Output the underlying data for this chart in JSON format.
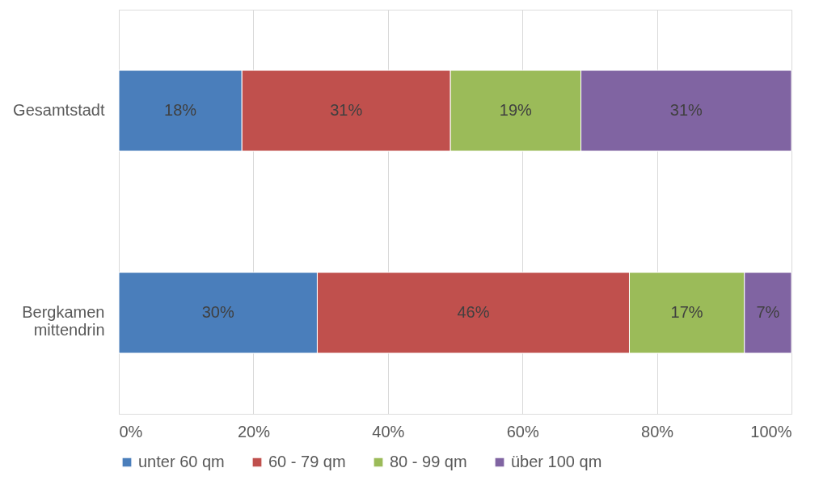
{
  "chart_data": {
    "type": "bar",
    "orientation": "horizontal",
    "stacked": true,
    "categories": [
      "Gesamtstadt",
      "Bergkamen mittendrin"
    ],
    "series": [
      {
        "name": "unter 60 qm",
        "color": "#4a7ebb",
        "values": [
          18.3,
          29.5
        ],
        "value_labels": [
          "18%",
          "30%"
        ]
      },
      {
        "name": "60 - 79 qm",
        "color": "#c0504d",
        "values": [
          31.0,
          46.4
        ],
        "value_labels": [
          "31%",
          "46%"
        ]
      },
      {
        "name": "80 - 99 qm",
        "color": "#9bbb59",
        "values": [
          19.4,
          17.1
        ],
        "value_labels": [
          "19%",
          "17%"
        ]
      },
      {
        "name": "über 100 qm",
        "color": "#8064a2",
        "values": [
          31.3,
          7.0
        ],
        "value_labels": [
          "31%",
          "7%"
        ]
      }
    ],
    "xlim": [
      0,
      100
    ],
    "xticks": [
      {
        "value": 0,
        "label": "0%"
      },
      {
        "value": 20,
        "label": "20%"
      },
      {
        "value": 40,
        "label": "40%"
      },
      {
        "value": 60,
        "label": "60%"
      },
      {
        "value": 80,
        "label": "80%"
      },
      {
        "value": 100,
        "label": "100%"
      }
    ],
    "grid": "x",
    "legend": "bottom"
  }
}
